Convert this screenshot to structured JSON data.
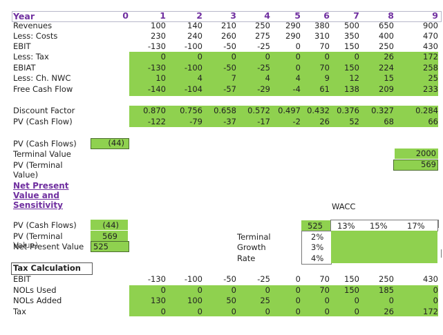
{
  "header": {
    "label": "Year",
    "years": [
      "0",
      "1",
      "2",
      "3",
      "4",
      "5",
      "6",
      "7",
      "8",
      "9"
    ]
  },
  "rows": [
    {
      "label": "Revenues",
      "values": [
        "100",
        "140",
        "210",
        "250",
        "290",
        "380",
        "500",
        "650",
        "900"
      ],
      "green": false
    },
    {
      "label": "Less: Costs",
      "values": [
        "230",
        "240",
        "260",
        "275",
        "290",
        "310",
        "350",
        "400",
        "470"
      ],
      "green": false
    },
    {
      "label": "EBIT",
      "values": [
        "-130",
        "-100",
        "-50",
        "-25",
        "0",
        "70",
        "150",
        "250",
        "430"
      ],
      "green": false
    },
    {
      "label": "Less: Tax",
      "values": [
        "0",
        "0",
        "0",
        "0",
        "0",
        "0",
        "0",
        "26",
        "172"
      ],
      "green": true
    },
    {
      "label": "EBIAT",
      "values": [
        "-130",
        "-100",
        "-50",
        "-25",
        "0",
        "70",
        "150",
        "224",
        "258"
      ],
      "green": true
    },
    {
      "label": "Less: Ch. NWC",
      "values": [
        "10",
        "4",
        "7",
        "4",
        "4",
        "9",
        "12",
        "15",
        "25"
      ],
      "green": true
    },
    {
      "label": "Free Cash Flow",
      "values": [
        "-140",
        "-104",
        "-57",
        "-29",
        "-4",
        "61",
        "138",
        "209",
        "233"
      ],
      "green": true
    }
  ],
  "discount": [
    {
      "label": "Discount Factor",
      "values": [
        "0.870",
        "0.756",
        "0.658",
        "0.572",
        "0.497",
        "0.432",
        "0.376",
        "0.327",
        "0.284"
      ]
    },
    {
      "label": "PV (Cash Flow)",
      "values": [
        "-122",
        "-79",
        "-37",
        "-17",
        "-2",
        "26",
        "52",
        "68",
        "66"
      ]
    }
  ],
  "pv_block": {
    "pv_cash_flows_label": "PV (Cash Flows)",
    "pv_cash_flows_value": "(44)",
    "terminal_value_label": "Terminal Value",
    "terminal_value": "2000",
    "pv_terminal_label_1": "PV (Terminal",
    "pv_terminal_label_2": "Value)",
    "pv_terminal_value": "569"
  },
  "npv_section": {
    "title_1": "Net Present",
    "title_2": "Value and",
    "title_3": "Sensitivity",
    "wacc_label": "WACC",
    "pv_cash_flows_label": "PV (Cash Flows)",
    "pv_cash_flows_value": "(44)",
    "pv_terminal_label": "PV (Terminal",
    "pv_terminal_value": "569",
    "overlap_label_1": "Value)",
    "npv_label": "Net Present Value",
    "npv_value": "525",
    "terminal_growth_1": "Terminal",
    "terminal_growth_2": "Growth",
    "terminal_growth_3": "Rate",
    "corner_value": "525",
    "wacc_values": [
      "13%",
      "15%",
      "17%"
    ],
    "growth_values": [
      "2%",
      "3%",
      "4%"
    ]
  },
  "tax_section": {
    "title": "Tax Calculation",
    "rows": [
      {
        "label": "EBIT",
        "values": [
          "-130",
          "-100",
          "-50",
          "-25",
          "0",
          "70",
          "150",
          "250",
          "430"
        ],
        "green": false
      },
      {
        "label": "NOLs Used",
        "values": [
          "0",
          "0",
          "0",
          "0",
          "0",
          "70",
          "150",
          "185",
          "0"
        ],
        "green": true
      },
      {
        "label": "NOLs Added",
        "values": [
          "130",
          "100",
          "50",
          "25",
          "0",
          "0",
          "0",
          "0",
          "0"
        ],
        "green": true
      },
      {
        "label": "Tax",
        "values": [
          "0",
          "0",
          "0",
          "0",
          "0",
          "0",
          "0",
          "26",
          "172"
        ],
        "green": true
      }
    ]
  }
}
